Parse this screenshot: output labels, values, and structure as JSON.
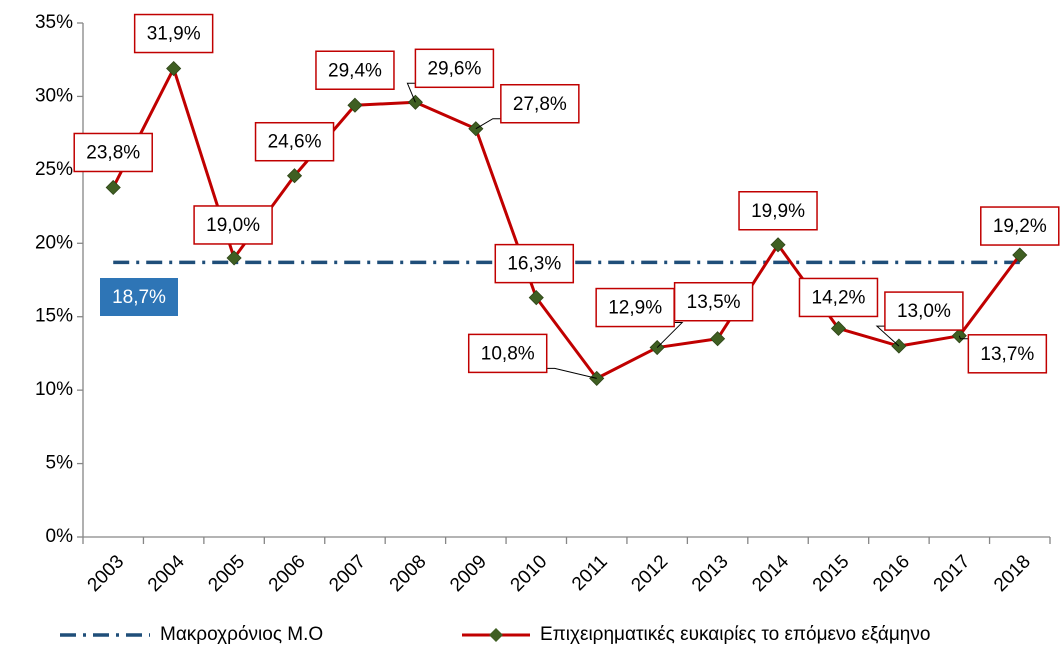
{
  "chart_data": {
    "type": "line",
    "categories": [
      "2003",
      "2004",
      "2005",
      "2006",
      "2007",
      "2008",
      "2009",
      "2010",
      "2011",
      "2012",
      "2013",
      "2014",
      "2015",
      "2016",
      "2017",
      "2018"
    ],
    "series": [
      {
        "name": "Μακροχρόνιος Μ.Ο",
        "color": "#1f4e79",
        "label_color": "#2e75b6",
        "style": "dash-dot",
        "values": [
          18.7,
          18.7,
          18.7,
          18.7,
          18.7,
          18.7,
          18.7,
          18.7,
          18.7,
          18.7,
          18.7,
          18.7,
          18.7,
          18.7,
          18.7,
          18.7
        ],
        "value_labels": [
          "18,7%",
          null,
          null,
          null,
          null,
          null,
          null,
          null,
          null,
          null,
          null,
          null,
          null,
          null,
          null,
          null
        ]
      },
      {
        "name": "Επιχειρηματικές ευκαιρίες το επόμενο εξάμηνο",
        "color": "#c00000",
        "marker_color": "#3f5f22",
        "marker": "diamond",
        "values": [
          23.8,
          31.9,
          19.0,
          24.6,
          29.4,
          29.6,
          27.8,
          16.3,
          10.8,
          12.9,
          13.5,
          19.9,
          14.2,
          13.0,
          13.7,
          19.2
        ],
        "value_labels": [
          "23,8%",
          "31,9%",
          "19,0%",
          "24,6%",
          "29,4%",
          "29,6%",
          "27,8%",
          "16,3%",
          "10,8%",
          "12,9%",
          "13,5%",
          "19,9%",
          "14,2%",
          "13,0%",
          "13,7%",
          "19,2%"
        ]
      }
    ],
    "ylim": [
      0,
      35
    ],
    "yticks": [
      {
        "value": 0,
        "label": "0%"
      },
      {
        "value": 5,
        "label": "5%"
      },
      {
        "value": 10,
        "label": "10%"
      },
      {
        "value": 15,
        "label": "15%"
      },
      {
        "value": 20,
        "label": "20%"
      },
      {
        "value": 25,
        "label": "25%"
      },
      {
        "value": 30,
        "label": "30%"
      },
      {
        "value": 35,
        "label": "35%"
      }
    ],
    "grid": false,
    "legend": "bottom"
  }
}
